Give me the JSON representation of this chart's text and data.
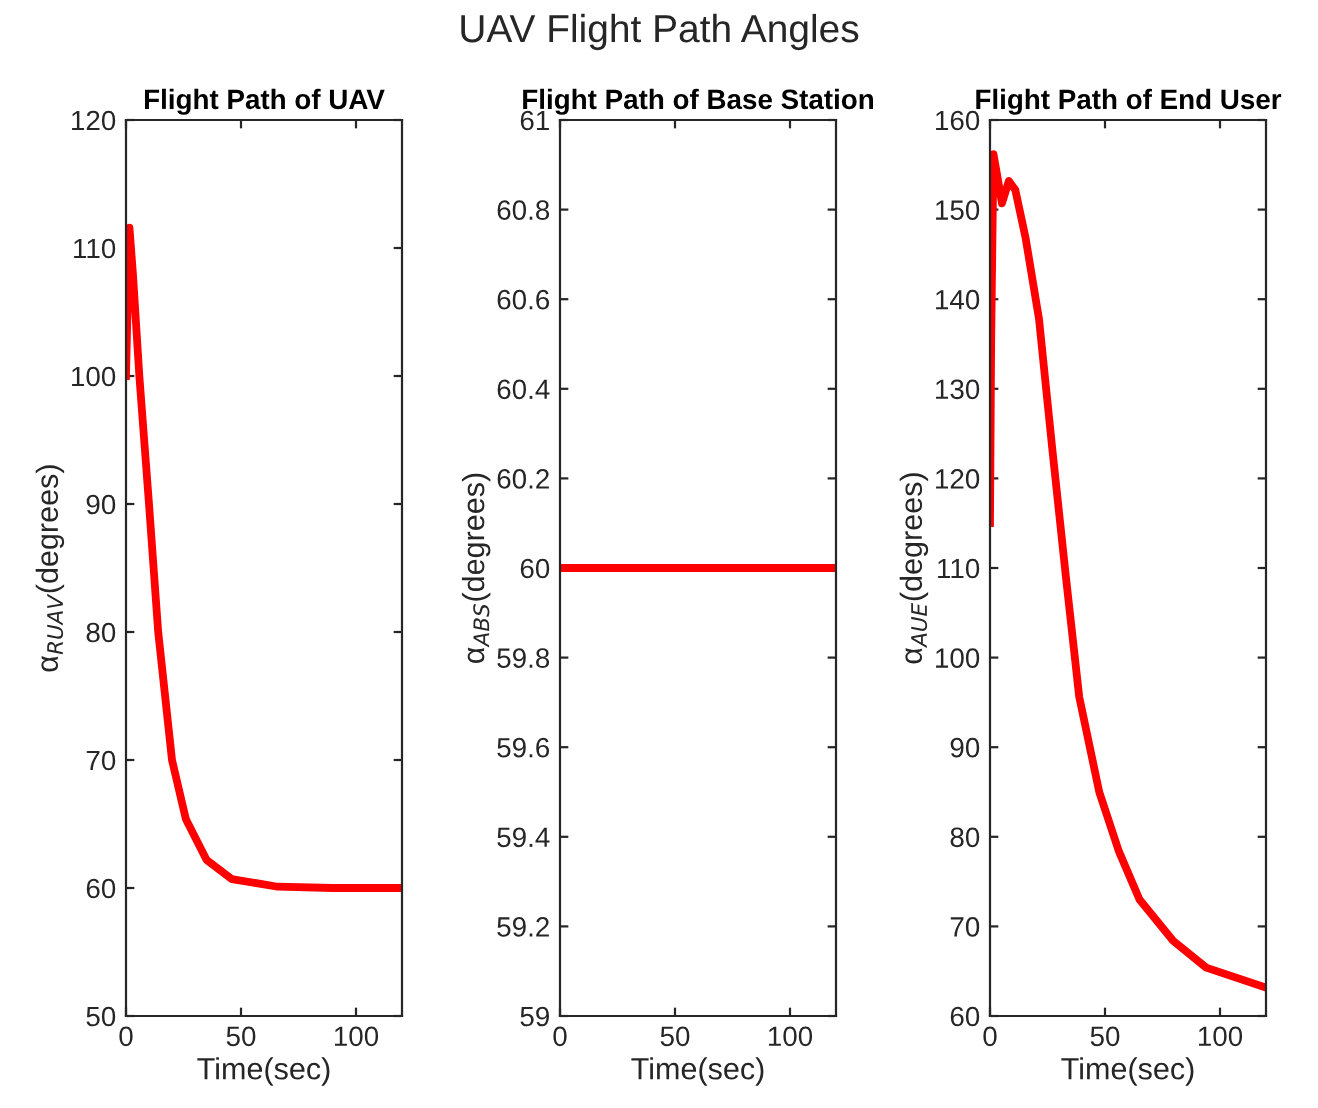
{
  "chart_data": [
    {
      "type": "line",
      "title": "Flight Path of UAV",
      "xlabel": "Time(sec)",
      "ylabel": "α$_{RUAV}$(degrees)",
      "annotations": [
        "UAV Flight Path Angles"
      ],
      "grid": false,
      "legend": false,
      "series": [
        {
          "color": "#ff0000",
          "x": [
            0,
            1.5,
            3,
            5.8,
            10,
            14,
            20,
            26,
            35,
            46,
            66,
            90,
            120
          ],
          "values": [
            100,
            111.6,
            108,
            100,
            90,
            80,
            70,
            65.4,
            62.2,
            60.7,
            60.1,
            60,
            60
          ]
        }
      ],
      "xlim": [
        0,
        120
      ],
      "xticks": [
        0,
        50,
        100
      ],
      "ylim": [
        50,
        120
      ],
      "yticks": [
        50,
        60,
        70,
        80,
        90,
        100,
        110,
        120
      ]
    },
    {
      "type": "line",
      "title": "Flight Path of Base Station",
      "xlabel": "Time(sec)",
      "ylabel": "α$_{ABS}$(degrees)",
      "grid": false,
      "legend": false,
      "series": [
        {
          "color": "#ff0000",
          "x": [
            0,
            120
          ],
          "values": [
            60,
            60
          ]
        }
      ],
      "xlim": [
        0,
        120
      ],
      "xticks": [
        0,
        50,
        100
      ],
      "ylim": [
        59,
        61
      ],
      "yticks": [
        59,
        59.2,
        59.4,
        59.6,
        59.8,
        60,
        60.2,
        60.4,
        60.6,
        60.8,
        61
      ]
    },
    {
      "type": "line",
      "title": "Flight Path of End User",
      "xlabel": "Time(sec)",
      "ylabel": "α$_{AUE}$(degrees)",
      "grid": false,
      "legend": false,
      "series": [
        {
          "color": "#ff0000",
          "x": [
            0,
            0.5,
            1.5,
            3,
            5.2,
            8.2,
            11,
            15.5,
            21.3,
            27,
            33,
            38.8,
            47.5,
            56,
            65,
            79.6,
            94,
            119.5
          ],
          "values": [
            115,
            135,
            156.2,
            154,
            150.7,
            153.2,
            152.2,
            146.8,
            137.8,
            123.5,
            109,
            95.6,
            85,
            78.4,
            73,
            68.4,
            65.4,
            63.2
          ]
        }
      ],
      "xlim": [
        0,
        120
      ],
      "xticks": [
        0,
        50,
        100
      ],
      "ylim": [
        60,
        160
      ],
      "yticks": [
        60,
        70,
        80,
        90,
        100,
        110,
        120,
        130,
        140,
        150,
        160
      ]
    }
  ]
}
